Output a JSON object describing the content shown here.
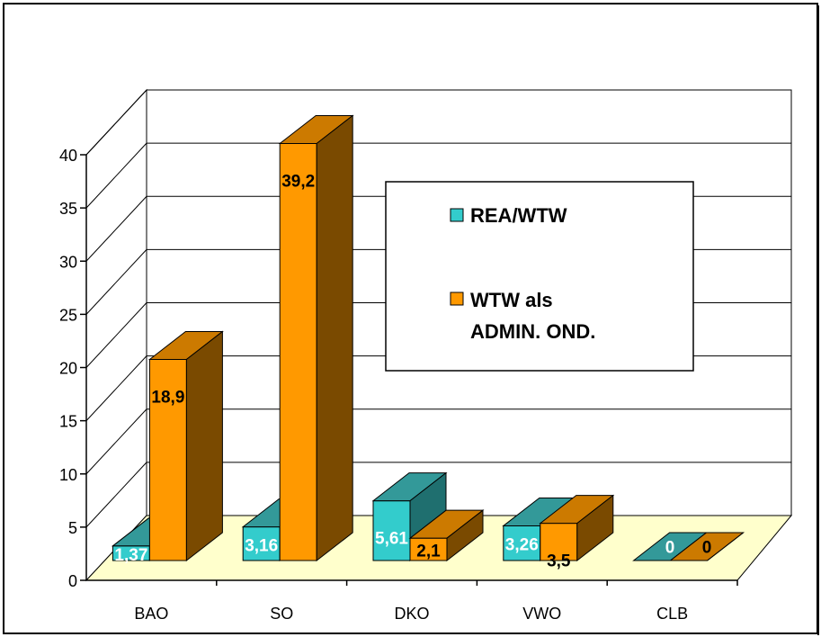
{
  "chart_data": {
    "type": "bar",
    "categories": [
      "BAO",
      "SO",
      "DKO",
      "VWO",
      "CLB"
    ],
    "series": [
      {
        "name": "REA/WTW",
        "values": [
          1.37,
          3.16,
          5.61,
          3.26,
          0
        ],
        "labels": [
          "1,37",
          "3,16",
          "5,61",
          "3,26",
          "0"
        ],
        "color": "#33CCCC",
        "top_color": "#339999",
        "side_color": "#1F6F6F",
        "label_color": "#FFFFFF"
      },
      {
        "name": "WTW als ADMIN. OND.",
        "values": [
          18.9,
          39.2,
          2.1,
          3.5,
          0
        ],
        "labels": [
          "18,9",
          "39,2",
          "2,1",
          "3,5",
          "0"
        ],
        "color": "#FF9900",
        "top_color": "#CC7A00",
        "side_color": "#7A4A00",
        "label_color": "#000000"
      }
    ],
    "yticks": [
      0,
      5,
      10,
      15,
      20,
      25,
      30,
      35,
      40
    ],
    "ylim": [
      0,
      40
    ],
    "floor_color": "#FFFFCC",
    "legend": {
      "position": "center-right",
      "entries": [
        "REA/WTW",
        "WTW als",
        "ADMIN. OND."
      ]
    }
  }
}
